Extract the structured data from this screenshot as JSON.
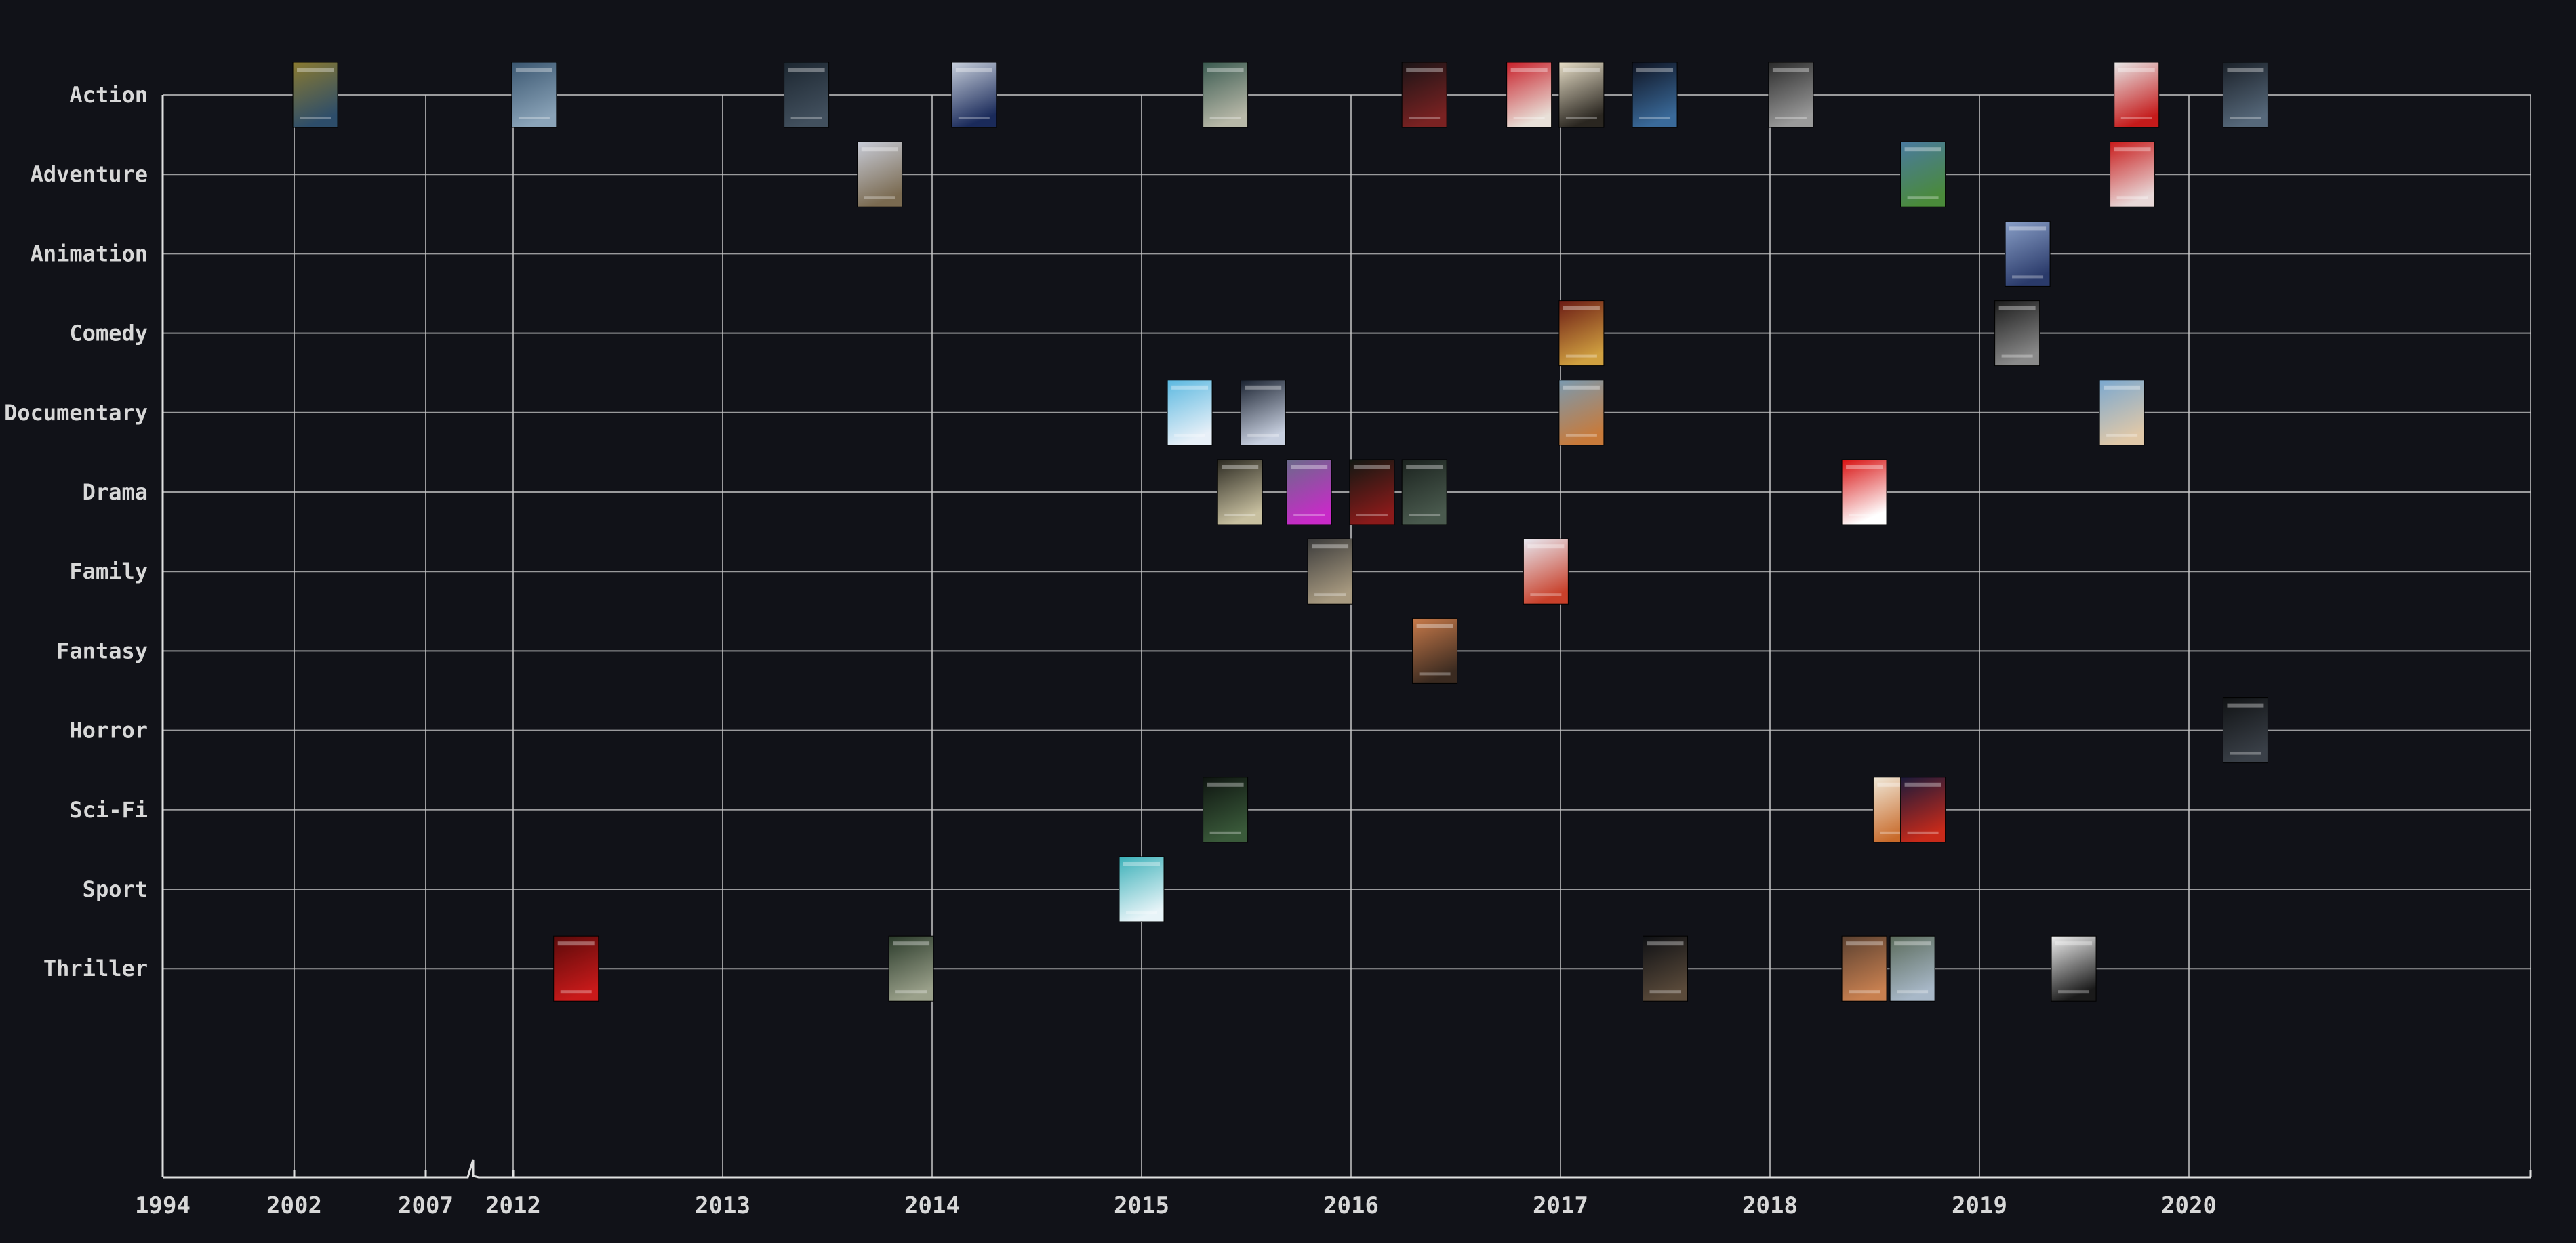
{
  "chart_data": {
    "type": "scatter",
    "title": "",
    "xlabel": "",
    "ylabel": "",
    "genres": [
      "Action",
      "Adventure",
      "Animation",
      "Comedy",
      "Documentary",
      "Drama",
      "Family",
      "Fantasy",
      "Horror",
      "Sci-Fi",
      "Sport",
      "Thriller"
    ],
    "year_ticks": [
      "1994",
      "2002",
      "2007",
      "2012",
      "2013",
      "2014",
      "2015",
      "2016",
      "2017",
      "2018",
      "2019",
      "2020"
    ],
    "x_axis_break_between": [
      "2007",
      "2012"
    ],
    "grid": true,
    "marker": "movie-poster",
    "points": [
      {
        "year": 2002.8,
        "genre": "Action",
        "colors": [
          "#8a7a30",
          "#2d4d6a"
        ]
      },
      {
        "year": 2012.1,
        "genre": "Action",
        "colors": [
          "#3a5670",
          "#8aa3b8"
        ]
      },
      {
        "year": 2013.4,
        "genre": "Action",
        "colors": [
          "#1c2630",
          "#42505e"
        ]
      },
      {
        "year": 2014.2,
        "genre": "Action",
        "colors": [
          "#c8d0dc",
          "#1a2a5a"
        ]
      },
      {
        "year": 2015.4,
        "genre": "Action",
        "colors": [
          "#3a5a50",
          "#b8b8a8"
        ]
      },
      {
        "year": 2016.35,
        "genre": "Action",
        "colors": [
          "#1a1416",
          "#7a2222"
        ]
      },
      {
        "year": 2016.85,
        "genre": "Action",
        "colors": [
          "#c8202a",
          "#e8e0d8"
        ]
      },
      {
        "year": 2017.1,
        "genre": "Action",
        "colors": [
          "#e6ddc6",
          "#2a2620"
        ]
      },
      {
        "year": 2017.45,
        "genre": "Action",
        "colors": [
          "#0e1220",
          "#3a6a9a"
        ]
      },
      {
        "year": 2018.1,
        "genre": "Action",
        "colors": [
          "#2a2a2a",
          "#9a9a9a"
        ]
      },
      {
        "year": 2019.75,
        "genre": "Action",
        "colors": [
          "#e8e8e8",
          "#c41a1a"
        ]
      },
      {
        "year": 2020.27,
        "genre": "Action",
        "colors": [
          "#1a2028",
          "#56687a"
        ]
      },
      {
        "year": 2013.75,
        "genre": "Adventure",
        "colors": [
          "#c8ccd8",
          "#7a6a50"
        ]
      },
      {
        "year": 2018.73,
        "genre": "Adventure",
        "colors": [
          "#4a7aa0",
          "#4a8a3a"
        ]
      },
      {
        "year": 2019.73,
        "genre": "Adventure",
        "colors": [
          "#c81a1a",
          "#e8d8d8"
        ]
      },
      {
        "year": 2019.23,
        "genre": "Animation",
        "colors": [
          "#8aa0c8",
          "#2a3a6a"
        ]
      },
      {
        "year": 2017.1,
        "genre": "Comedy",
        "colors": [
          "#6a1a14",
          "#d0a040"
        ]
      },
      {
        "year": 2019.18,
        "genre": "Comedy",
        "colors": [
          "#1a1a1a",
          "#8a8a8a"
        ]
      },
      {
        "year": 2015.23,
        "genre": "Documentary",
        "colors": [
          "#5ab8e0",
          "#e8f0f8"
        ]
      },
      {
        "year": 2015.58,
        "genre": "Documentary",
        "colors": [
          "#1a2230",
          "#c8d0e0"
        ]
      },
      {
        "year": 2017.1,
        "genre": "Documentary",
        "colors": [
          "#7a9ab0",
          "#c87a3a"
        ]
      },
      {
        "year": 2019.68,
        "genre": "Documentary",
        "colors": [
          "#7aa8d0",
          "#e0c8a8"
        ]
      },
      {
        "year": 2015.47,
        "genre": "Drama",
        "colors": [
          "#2a2820",
          "#c8c0a0"
        ]
      },
      {
        "year": 2015.8,
        "genre": "Drama",
        "colors": [
          "#6a6a8a",
          "#c82ac8"
        ]
      },
      {
        "year": 2016.1,
        "genre": "Drama",
        "colors": [
          "#101812",
          "#8a1a1a"
        ]
      },
      {
        "year": 2016.35,
        "genre": "Drama",
        "colors": [
          "#1a221e",
          "#4a5a4e"
        ]
      },
      {
        "year": 2018.45,
        "genre": "Drama",
        "colors": [
          "#d81010",
          "#ffffff"
        ]
      },
      {
        "year": 2015.9,
        "genre": "Family",
        "colors": [
          "#3a3a3a",
          "#a89a80"
        ]
      },
      {
        "year": 2016.93,
        "genre": "Family",
        "colors": [
          "#e8e8f0",
          "#c8402a"
        ]
      },
      {
        "year": 2016.4,
        "genre": "Fantasy",
        "colors": [
          "#c87a4a",
          "#3a2a20"
        ]
      },
      {
        "year": 2020.27,
        "genre": "Horror",
        "colors": [
          "#101214",
          "#3a4048"
        ]
      },
      {
        "year": 2015.4,
        "genre": "Sci-Fi",
        "colors": [
          "#0e1410",
          "#3a5a3a"
        ]
      },
      {
        "year": 2018.6,
        "genre": "Sci-Fi",
        "colors": [
          "#f0e8d8",
          "#c86a2a"
        ]
      },
      {
        "year": 2018.73,
        "genre": "Sci-Fi",
        "colors": [
          "#1a1a3a",
          "#c82a1a"
        ]
      },
      {
        "year": 2015.0,
        "genre": "Sport",
        "colors": [
          "#3ab0b8",
          "#e8f4f8"
        ]
      },
      {
        "year": 2012.3,
        "genre": "Thriller",
        "colors": [
          "#5a0a0a",
          "#c81a1a"
        ]
      },
      {
        "year": 2013.9,
        "genre": "Thriller",
        "colors": [
          "#2a3a2a",
          "#9aa08a"
        ]
      },
      {
        "year": 2017.5,
        "genre": "Thriller",
        "colors": [
          "#0e1014",
          "#5a4a3a"
        ]
      },
      {
        "year": 2018.45,
        "genre": "Thriller",
        "colors": [
          "#5a4030",
          "#c88050"
        ]
      },
      {
        "year": 2018.68,
        "genre": "Thriller",
        "colors": [
          "#5a6a5a",
          "#a8b8c8"
        ]
      },
      {
        "year": 2019.45,
        "genre": "Thriller",
        "colors": [
          "#f0f0f0",
          "#1a1a1a"
        ]
      }
    ]
  }
}
